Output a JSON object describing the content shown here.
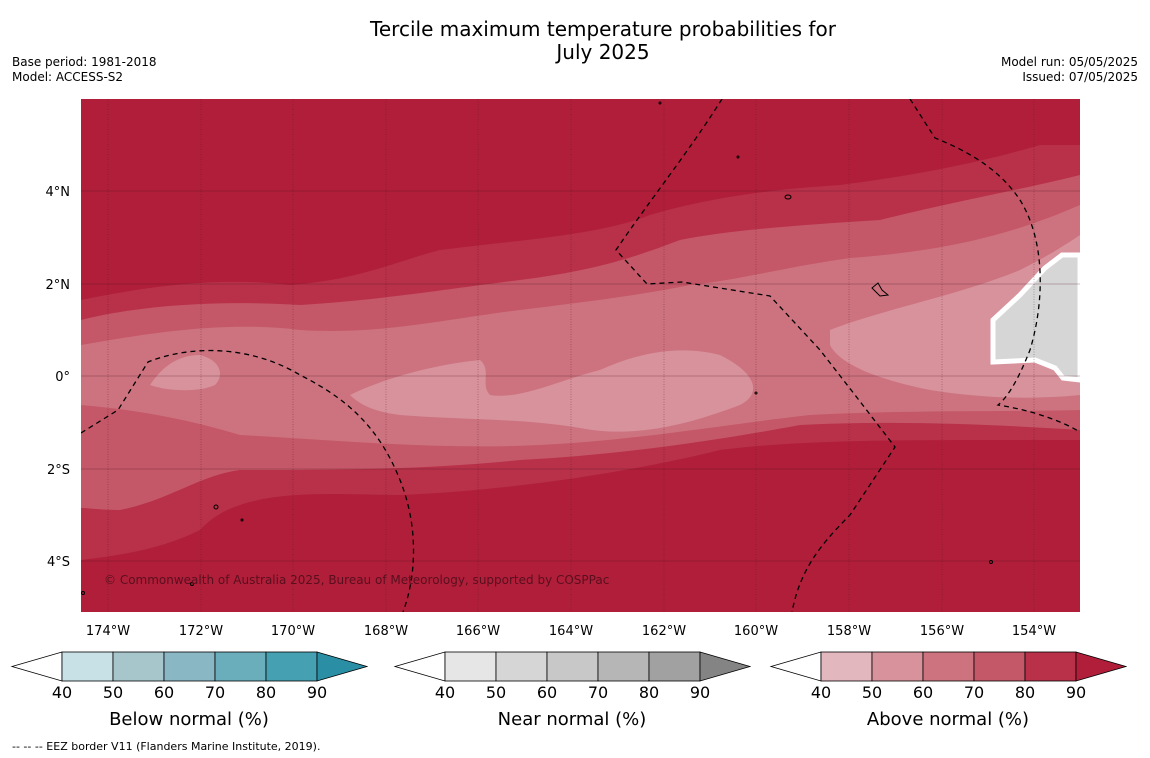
{
  "title_line1": "Tercile maximum temperature probabilities for",
  "title_line2": "July 2025",
  "base_period": "Base period: 1981-2018",
  "model": "Model: ACCESS-S2",
  "model_run": "Model run: 05/05/2025",
  "issued": "Issued: 07/05/2025",
  "copyright": "© Commonwealth of Australia 2025, Bureau of Meteorology, supported by COSPPac",
  "lat_labels": [
    "4°N",
    "2°N",
    "0°",
    "2°S",
    "4°S"
  ],
  "lon_labels": [
    "174°W",
    "172°W",
    "170°W",
    "168°W",
    "166°W",
    "164°W",
    "162°W",
    "160°W",
    "158°W",
    "156°W",
    "154°W"
  ],
  "colorbars": [
    {
      "title": "Below normal (%)",
      "ticks": [
        "40",
        "50",
        "60",
        "70",
        "80",
        "90"
      ],
      "colors": [
        "#c8e1e7",
        "#a7c6cc",
        "#8ab7c4",
        "#6aaebb",
        "#45a0b1",
        "#2a8fa5"
      ]
    },
    {
      "title": "Near normal (%)",
      "ticks": [
        "40",
        "50",
        "60",
        "70",
        "80",
        "90"
      ],
      "colors": [
        "#e6e6e6",
        "#d6d6d6",
        "#c8c8c8",
        "#b6b6b6",
        "#a1a1a1",
        "#848484"
      ]
    },
    {
      "title": "Above normal (%)",
      "ticks": [
        "40",
        "50",
        "60",
        "70",
        "80",
        "90"
      ],
      "colors": [
        "#e2b7be",
        "#d7929c",
        "#cd737f",
        "#c45868",
        "#b83149",
        "#b01e3a"
      ]
    }
  ],
  "footnote": "--  --  -- EEZ border V11 (Flanders Marine Institute, 2019).",
  "map_colors": {
    "level_90": "#b01e3a",
    "level_80": "#b83149",
    "level_70": "#c45868",
    "level_60": "#cd737f",
    "level_50": "#d7929c",
    "near_normal_50": "#d6d6d6"
  }
}
